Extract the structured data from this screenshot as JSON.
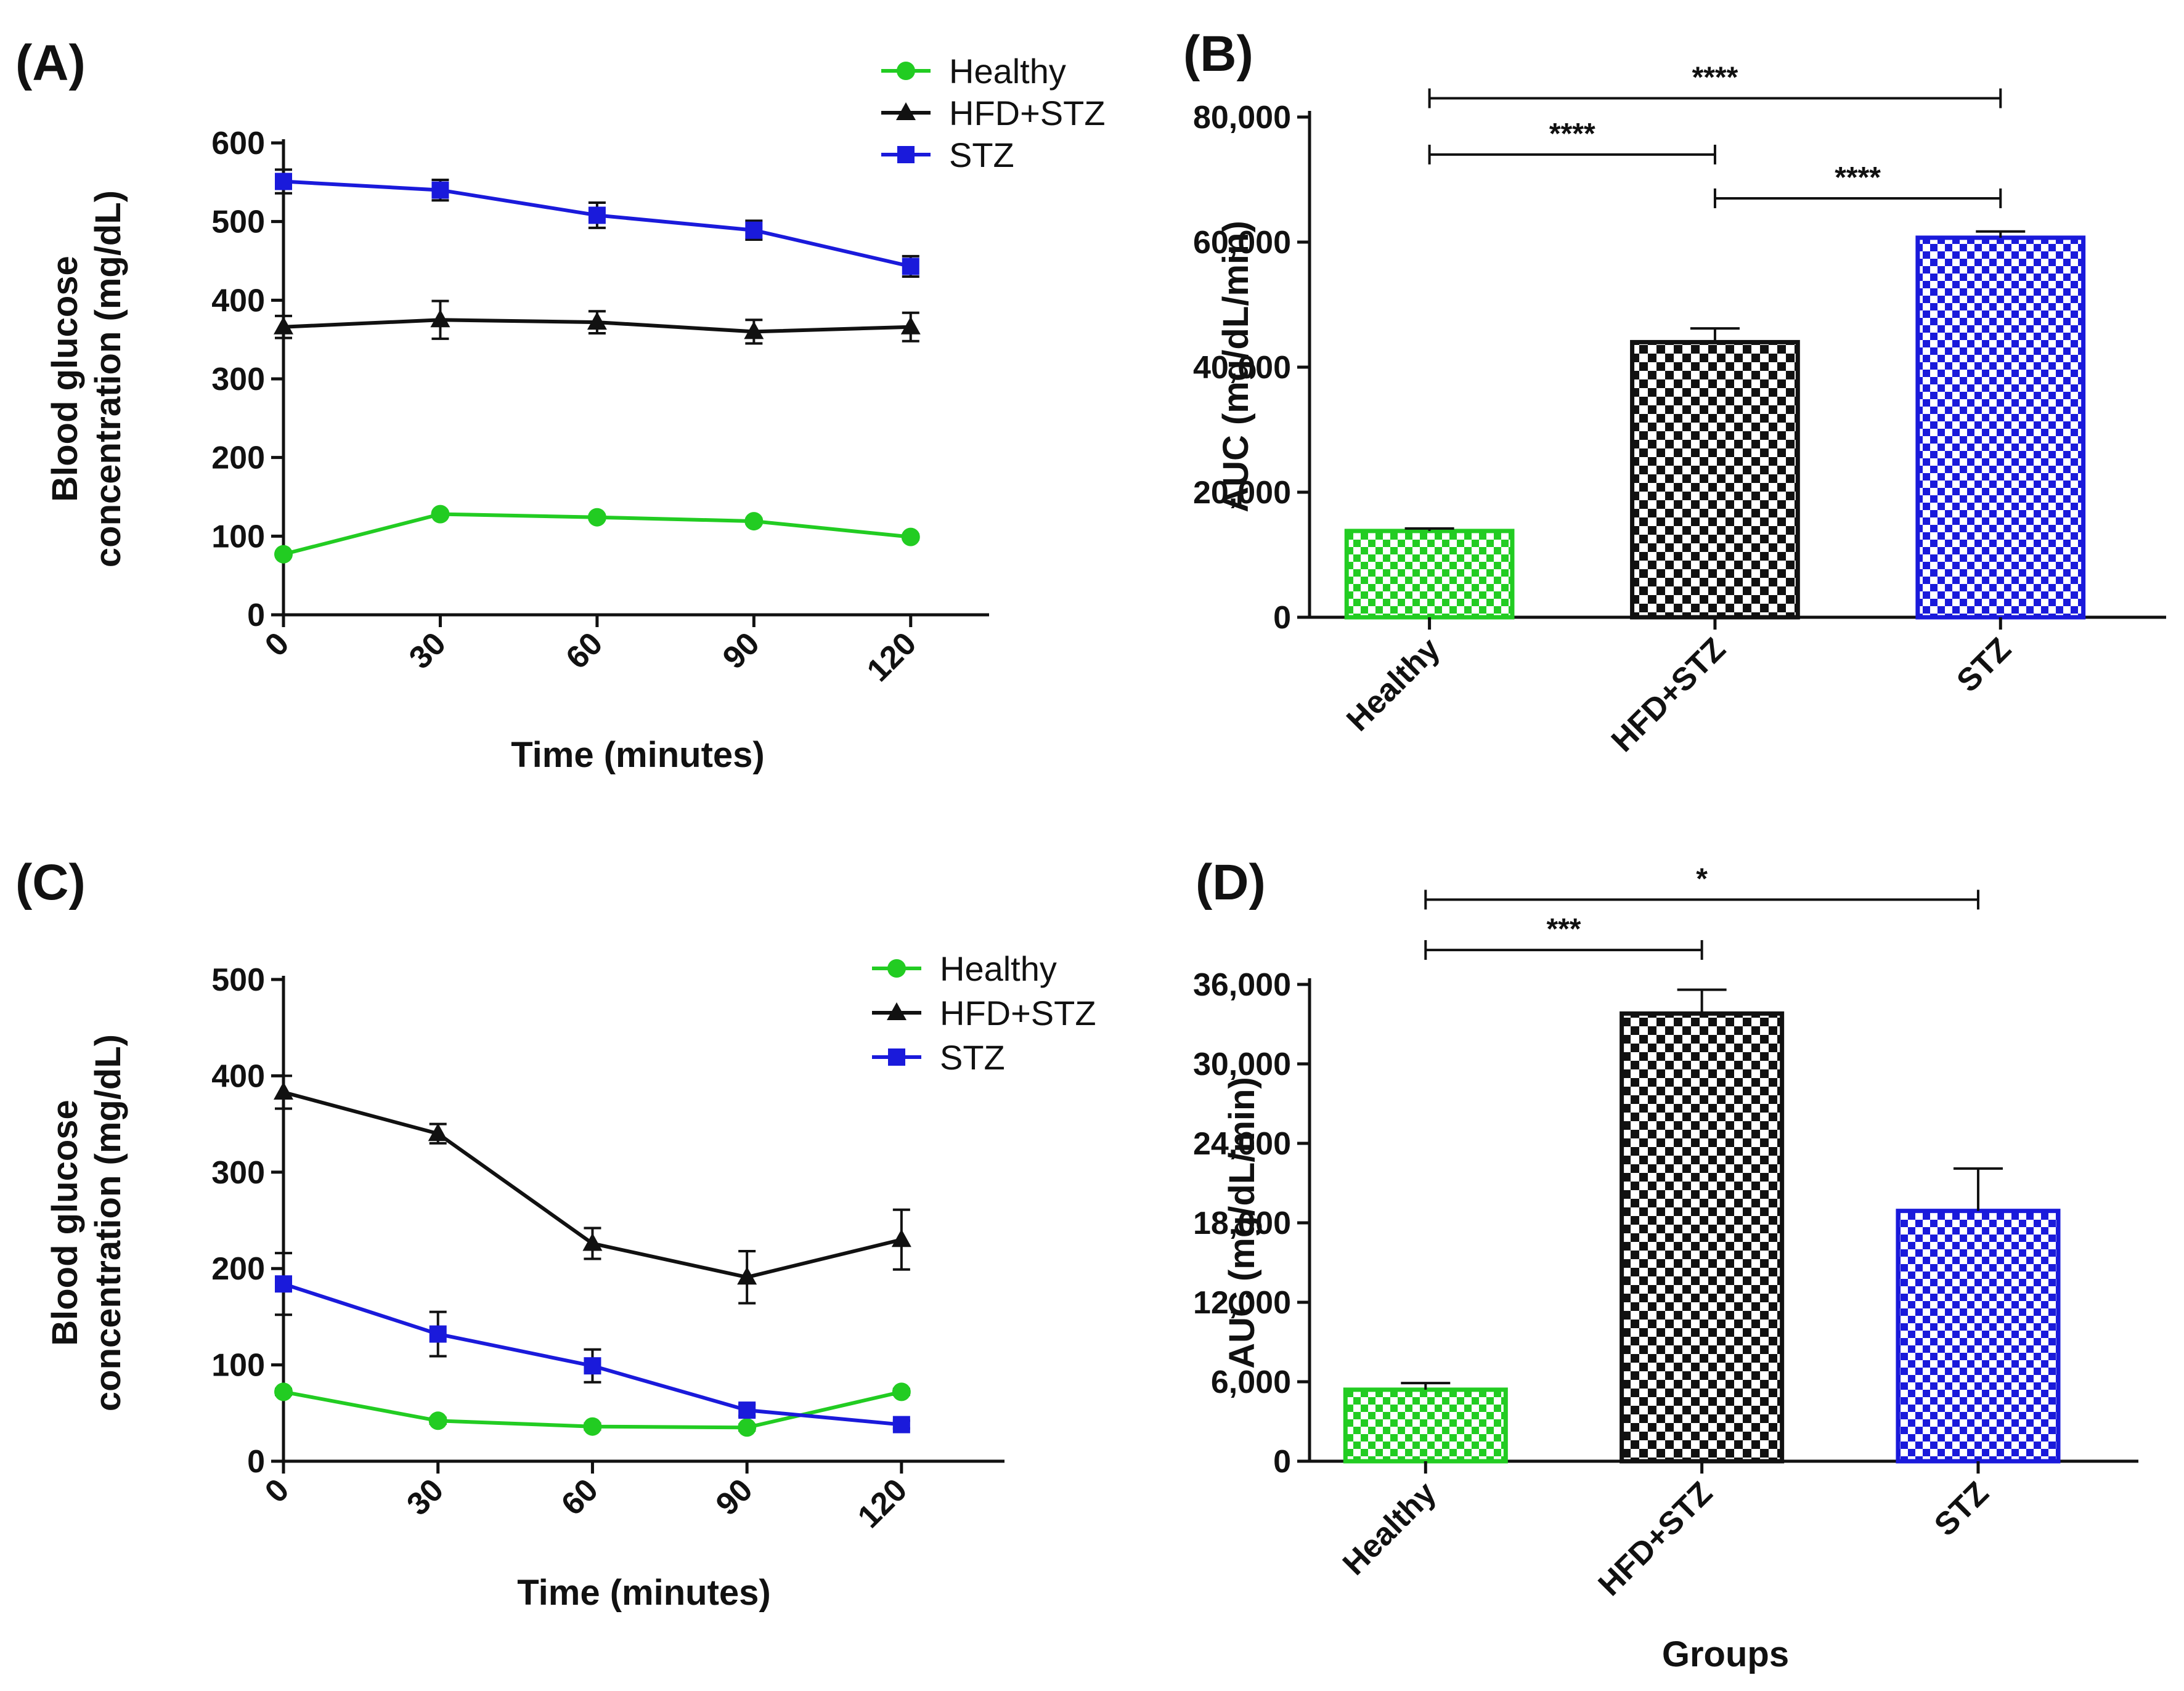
{
  "chart_data": [
    {
      "id": "A",
      "type": "line",
      "panel_label": "(A)",
      "xlabel": "Time (minutes)",
      "ylabel_line1": "Blood glucose",
      "ylabel_line2": "concentration (mg/dL)",
      "x": [
        0,
        30,
        60,
        90,
        120
      ],
      "xticks": [
        "0",
        "30",
        "60",
        "90",
        "120"
      ],
      "yticks": [
        "0",
        "100",
        "200",
        "300",
        "400",
        "500",
        "600"
      ],
      "ylim": [
        0,
        600
      ],
      "legend_position": "top-right",
      "series": [
        {
          "name": "Healthy",
          "color": "#22cc22",
          "marker": "circle",
          "values": [
            77,
            128,
            124,
            119,
            99
          ],
          "errors": [
            3,
            3,
            3,
            3,
            3
          ]
        },
        {
          "name": "HFD+STZ",
          "color": "#111111",
          "marker": "triangle",
          "values": [
            366,
            375,
            372,
            360,
            366
          ],
          "errors": [
            14,
            24,
            14,
            15,
            18
          ]
        },
        {
          "name": "STZ",
          "color": "#1a1adb",
          "marker": "square",
          "values": [
            551,
            540,
            508,
            489,
            443
          ],
          "errors": [
            15,
            13,
            16,
            12,
            13
          ]
        }
      ]
    },
    {
      "id": "B",
      "type": "bar",
      "panel_label": "(B)",
      "xlabel": "",
      "ylabel": "AUC (mg/dL/min)",
      "categories": [
        "Healthy",
        "HFD+STZ",
        "STZ"
      ],
      "values": [
        13800,
        44000,
        60700
      ],
      "errors": [
        400,
        2200,
        1000
      ],
      "colors": [
        "#22cc22",
        "#111111",
        "#1a1adb"
      ],
      "pattern": "checkerboard",
      "yticks": [
        "0",
        "20,000",
        "40,000",
        "60,000",
        "80,000"
      ],
      "ylim": [
        0,
        80000
      ],
      "significance": [
        {
          "from": 0,
          "to": 2,
          "label": "****",
          "level": 83000
        },
        {
          "from": 0,
          "to": 1,
          "label": "****",
          "level": 74000
        },
        {
          "from": 1,
          "to": 2,
          "label": "****",
          "level": 67000
        }
      ]
    },
    {
      "id": "C",
      "type": "line",
      "panel_label": "(C)",
      "xlabel": "Time (minutes)",
      "ylabel_line1": "Blood glucose",
      "ylabel_line2": "concentration (mg/dL)",
      "x": [
        0,
        30,
        60,
        90,
        120
      ],
      "xticks": [
        "0",
        "30",
        "60",
        "90",
        "120"
      ],
      "yticks": [
        "0",
        "100",
        "200",
        "300",
        "400",
        "500"
      ],
      "ylim": [
        0,
        500
      ],
      "legend_position": "top-right",
      "series": [
        {
          "name": "Healthy",
          "color": "#22cc22",
          "marker": "circle",
          "values": [
            72,
            42,
            36,
            35,
            72
          ],
          "errors": [
            3,
            3,
            3,
            3,
            3
          ]
        },
        {
          "name": "HFD+STZ",
          "color": "#111111",
          "marker": "triangle",
          "values": [
            383,
            340,
            226,
            191,
            230
          ],
          "errors": [
            17,
            10,
            16,
            27,
            31
          ]
        },
        {
          "name": "STZ",
          "color": "#1a1adb",
          "marker": "square",
          "values": [
            184,
            132,
            99,
            53,
            38
          ],
          "errors": [
            32,
            23,
            17,
            6,
            4
          ]
        }
      ]
    },
    {
      "id": "D",
      "type": "bar",
      "panel_label": "(D)",
      "xlabel": "Groups",
      "ylabel": "AUC (mg/dL/min)",
      "categories": [
        "Healthy",
        "HFD+STZ",
        "STZ"
      ],
      "values": [
        5400,
        33800,
        18900
      ],
      "errors": [
        500,
        1800,
        3200
      ],
      "colors": [
        "#22cc22",
        "#111111",
        "#1a1adb"
      ],
      "pattern": "checkerboard",
      "yticks": [
        "0",
        "6,000",
        "12,000",
        "18,000",
        "24,000",
        "30,000",
        "36,000"
      ],
      "ylim": [
        0,
        36000
      ],
      "significance": [
        {
          "from": 0,
          "to": 2,
          "label": "*",
          "level": 42400
        },
        {
          "from": 0,
          "to": 1,
          "label": "***",
          "level": 38600
        }
      ]
    }
  ]
}
